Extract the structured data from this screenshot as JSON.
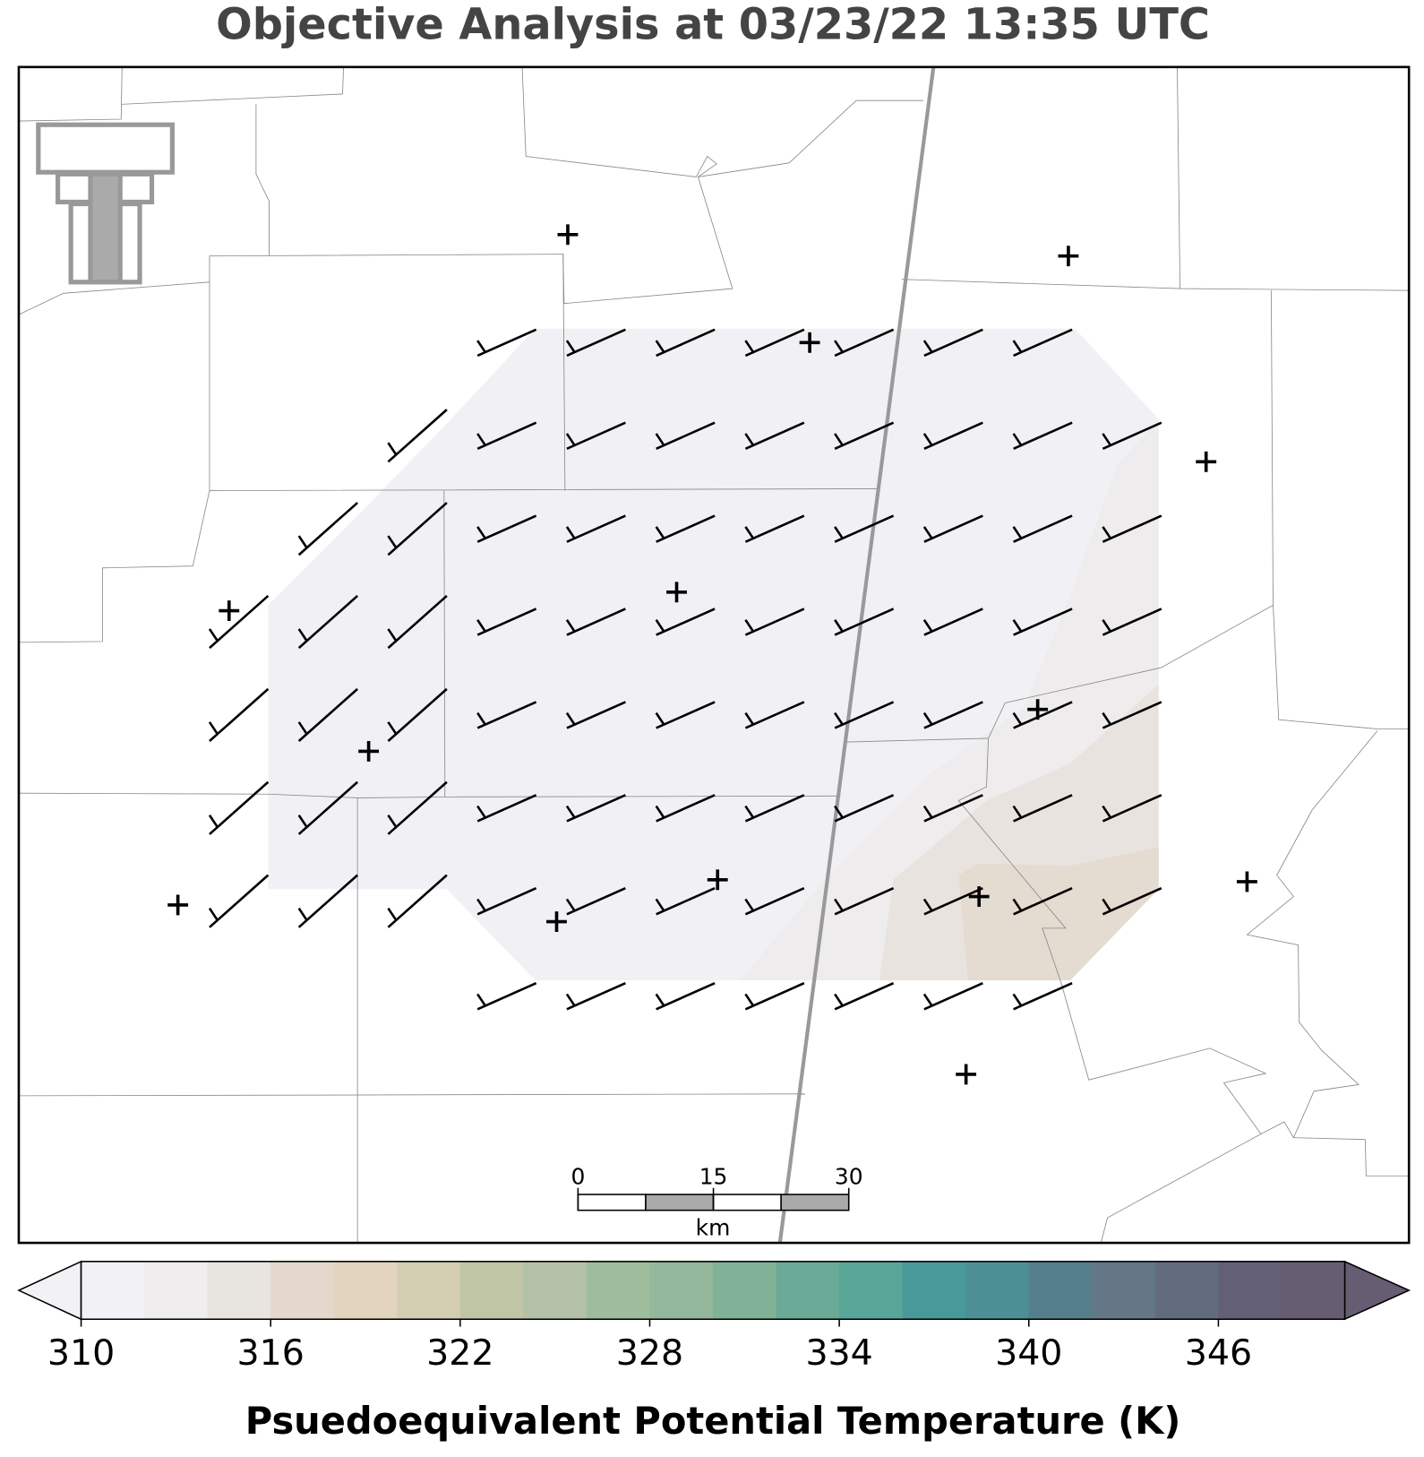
{
  "title": "Objective Analysis at 03/23/22 13:35 UTC",
  "colorbar": {
    "label": "Psuedoequivalent Potential Temperature (K)",
    "range": [
      310,
      350
    ],
    "ticks": [
      310,
      316,
      322,
      328,
      334,
      340,
      346
    ],
    "colors": [
      "#f2f1f6",
      "#efedee",
      "#e8e4e0",
      "#e3d8cb",
      "#e2d4bf",
      "#d3cdb1",
      "#c0c5a6",
      "#b3c2a6",
      "#9fbc9c",
      "#93b89b",
      "#80b298",
      "#6aaa96",
      "#58a698",
      "#4a9999",
      "#4c9096",
      "#557f8b",
      "#637786",
      "#636c7f",
      "#635f76",
      "#665d73"
    ]
  },
  "scale_bar": {
    "ticks": [
      0,
      15,
      30
    ],
    "range": [
      0,
      30
    ],
    "unit": "km"
  }
}
